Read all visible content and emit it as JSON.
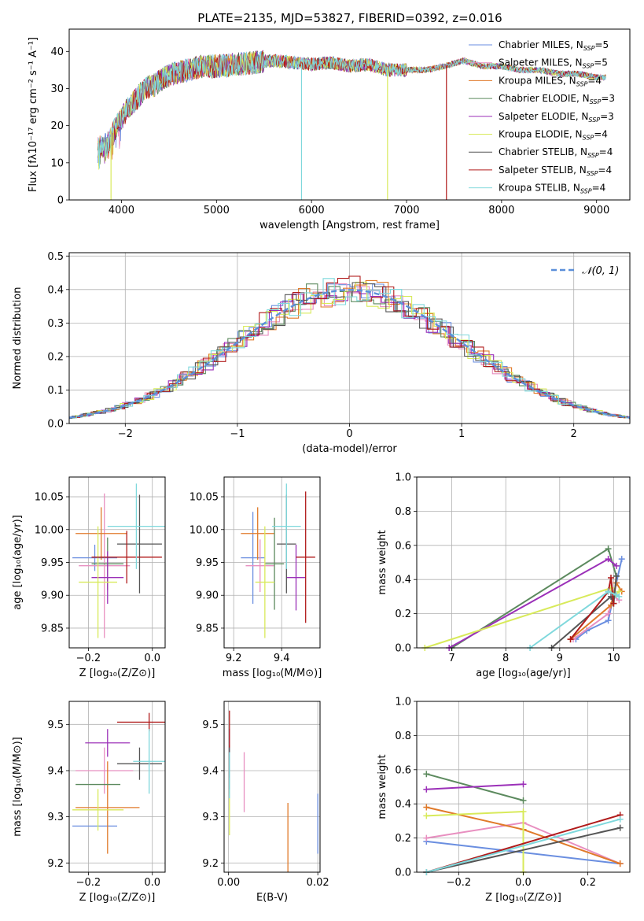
{
  "figure": {
    "title": "PLATE=2135, MJD=53827, FIBERID=0392, z=0.016",
    "panels": {
      "spectrum": {
        "xlabel": "wavelength [Angstrom, rest frame]",
        "ylabel": "Flux [fλ10⁻¹⁷ erg cm⁻² s⁻¹ A⁻¹]"
      },
      "residuals": {
        "xlabel": "(data-model)/error",
        "ylabel": "Normed distribution"
      },
      "age_vs_z": {
        "xlabel": "Z [log₁₀(Z/Z⊙)]",
        "ylabel": "age  [log₁₀(age/yr)]"
      },
      "age_vs_mass": {
        "xlabel": "mass [log₁₀(M/M⊙)]",
        "ylabel": ""
      },
      "weight_vs_age": {
        "xlabel": "age  [log₁₀(age/yr)]",
        "ylabel": "mass weight"
      },
      "mass_vs_z": {
        "xlabel": "Z [log₁₀(Z/Z⊙)]",
        "ylabel": "mass [log₁₀(M/M⊙)]"
      },
      "mass_vs_ebv": {
        "xlabel": "E(B-V)",
        "ylabel": ""
      },
      "weight_vs_z": {
        "xlabel": "Z [log₁₀(Z/Z⊙)]",
        "ylabel": "mass weight"
      }
    }
  },
  "colors": {
    "Chabrier MILES": "#6a8ee0",
    "Salpeter MILES": "#e88fc0",
    "Kroupa MILES": "#e07a2a",
    "Chabrier ELODIE": "#5c8a5e",
    "Salpeter ELODIE": "#9b30b8",
    "Kroupa ELODIE": "#d8ea5a",
    "Chabrier STELIB": "#555555",
    "Salpeter STELIB": "#b01a1a",
    "Kroupa STELIB": "#7fd8dc",
    "gauss": "#5b8fd9"
  },
  "chart_data": [
    {
      "id": "spectrum",
      "type": "line",
      "title": "PLATE=2135, MJD=53827, FIBERID=0392, z=0.016",
      "xlabel": "wavelength [Angstrom, rest frame]",
      "ylabel": "Flux [fλ10⁻¹⁷ erg cm⁻² s⁻¹ A⁻¹]",
      "xlim": [
        3450,
        9350
      ],
      "ylim": [
        0,
        46
      ],
      "xticks": [
        4000,
        5000,
        6000,
        7000,
        8000,
        9000
      ],
      "yticks": [
        0,
        10,
        20,
        30,
        40
      ],
      "grid": false,
      "legend_position": "top-right",
      "legend": [
        {
          "label": "Chabrier MILES, N",
          "sub": "SSP",
          "n": "=5",
          "color_key": "Chabrier MILES"
        },
        {
          "label": "Salpeter MILES, N",
          "sub": "SSP",
          "n": "=5",
          "color_key": "Salpeter MILES"
        },
        {
          "label": "Kroupa MILES, N",
          "sub": "SSP",
          "n": "=4",
          "color_key": "Kroupa MILES"
        },
        {
          "label": "Chabrier ELODIE, N",
          "sub": "SSP",
          "n": "=3",
          "color_key": "Chabrier ELODIE"
        },
        {
          "label": "Salpeter ELODIE, N",
          "sub": "SSP",
          "n": "=3",
          "color_key": "Salpeter ELODIE"
        },
        {
          "label": "Kroupa ELODIE, N",
          "sub": "SSP",
          "n": "=4",
          "color_key": "Kroupa ELODIE"
        },
        {
          "label": "Chabrier STELIB, N",
          "sub": "SSP",
          "n": "=4",
          "color_key": "Chabrier STELIB"
        },
        {
          "label": "Salpeter STELIB, N",
          "sub": "SSP",
          "n": "=4",
          "color_key": "Salpeter STELIB"
        },
        {
          "label": "Kroupa STELIB, N",
          "sub": "SSP",
          "n": "=4",
          "color_key": "Kroupa STELIB"
        }
      ],
      "continuum": [
        [
          3750,
          14
        ],
        [
          3850,
          15
        ],
        [
          3950,
          20
        ],
        [
          4050,
          24
        ],
        [
          4150,
          27
        ],
        [
          4250,
          30
        ],
        [
          4350,
          31
        ],
        [
          4450,
          33
        ],
        [
          4550,
          34
        ],
        [
          4700,
          35
        ],
        [
          4850,
          36
        ],
        [
          5000,
          36
        ],
        [
          5200,
          36.5
        ],
        [
          5400,
          37
        ],
        [
          5600,
          37.5
        ],
        [
          5800,
          37
        ],
        [
          6000,
          36.5
        ],
        [
          6200,
          37
        ],
        [
          6400,
          36
        ],
        [
          6600,
          36.5
        ],
        [
          6800,
          35
        ],
        [
          7000,
          35
        ],
        [
          7200,
          35
        ],
        [
          7400,
          36
        ],
        [
          7600,
          37.5
        ],
        [
          7800,
          36
        ],
        [
          8000,
          36
        ],
        [
          8200,
          35
        ],
        [
          8400,
          35
        ],
        [
          8600,
          34
        ],
        [
          8800,
          34
        ],
        [
          9000,
          33
        ],
        [
          9100,
          33
        ]
      ],
      "spikes_down": [
        {
          "x": 3890,
          "y": 0,
          "color_key": "Kroupa ELODIE"
        },
        {
          "x": 5895,
          "y": 0,
          "color_key": "Kroupa STELIB"
        },
        {
          "x": 6800,
          "y": 0,
          "color_key": "Kroupa ELODIE"
        },
        {
          "x": 7420,
          "y": 0,
          "color_key": "Salpeter STELIB"
        }
      ]
    },
    {
      "id": "residuals",
      "type": "histogram",
      "xlabel": "(data-model)/error",
      "ylabel": "Normed distribution",
      "xlim": [
        -2.5,
        2.5
      ],
      "ylim": [
        0,
        0.51
      ],
      "xticks": [
        -2,
        -1,
        0,
        1,
        2
      ],
      "yticks": [
        0.0,
        0.1,
        0.2,
        0.3,
        0.4,
        0.5
      ],
      "grid": true,
      "legend_position": "top-right",
      "gauss_label": "𝒩(0, 1)",
      "gauss_mean": 0,
      "gauss_sigma": 1,
      "bin_width": 0.1
    },
    {
      "id": "age_vs_z",
      "type": "scatter",
      "xlabel": "Z [log₁₀(Z/Z⊙)]",
      "ylabel": "age  [log₁₀(age/yr)]",
      "xlim": [
        -0.26,
        0.04
      ],
      "ylim": [
        9.82,
        10.08
      ],
      "xticks": [
        -0.2,
        0.0
      ],
      "yticks": [
        9.85,
        9.9,
        9.95,
        10.0,
        10.05
      ],
      "grid": true,
      "points": [
        {
          "model": "Chabrier MILES",
          "x": -0.18,
          "y": 9.957,
          "xerr": 0.07,
          "yerr": 0.02
        },
        {
          "model": "Salpeter MILES",
          "x": -0.15,
          "y": 9.945,
          "xerr": 0.08,
          "yerr": 0.11
        },
        {
          "model": "Kroupa MILES",
          "x": -0.16,
          "y": 9.994,
          "xerr": 0.08,
          "yerr": 0.04
        },
        {
          "model": "Chabrier ELODIE",
          "x": -0.14,
          "y": 9.948,
          "xerr": 0.05,
          "yerr": 0.04
        },
        {
          "model": "Salpeter ELODIE",
          "x": -0.14,
          "y": 9.927,
          "xerr": 0.05,
          "yerr": 0.04
        },
        {
          "model": "Kroupa ELODIE",
          "x": -0.17,
          "y": 9.92,
          "xerr": 0.06,
          "yerr": 0.085
        },
        {
          "model": "Chabrier STELIB",
          "x": -0.04,
          "y": 9.978,
          "xerr": 0.07,
          "yerr": 0.075
        },
        {
          "model": "Salpeter STELIB",
          "x": -0.08,
          "y": 9.958,
          "xerr": 0.11,
          "yerr": 0.04
        },
        {
          "model": "Kroupa STELIB",
          "x": -0.05,
          "y": 10.005,
          "xerr": 0.09,
          "yerr": 0.065
        }
      ]
    },
    {
      "id": "age_vs_mass",
      "type": "scatter",
      "xlabel": "mass [log₁₀(M/M⊙)]",
      "ylabel": "",
      "xlim": [
        9.16,
        9.56
      ],
      "ylim": [
        9.82,
        10.08
      ],
      "xticks": [
        9.2,
        9.4
      ],
      "yticks": [
        9.85,
        9.9,
        9.95,
        10.0,
        10.05
      ],
      "grid": true,
      "points": [
        {
          "model": "Chabrier MILES",
          "x": 9.28,
          "y": 9.957,
          "xerr": 0.05,
          "yerr": 0.07
        },
        {
          "model": "Salpeter MILES",
          "x": 9.31,
          "y": 9.945,
          "xerr": 0.06,
          "yerr": 0.04
        },
        {
          "model": "Kroupa MILES",
          "x": 9.3,
          "y": 9.994,
          "xerr": 0.07,
          "yerr": 0.04
        },
        {
          "model": "Chabrier ELODIE",
          "x": 9.37,
          "y": 9.948,
          "xerr": 0.04,
          "yerr": 0.07
        },
        {
          "model": "Salpeter ELODIE",
          "x": 9.46,
          "y": 9.927,
          "xerr": 0.04,
          "yerr": 0.05
        },
        {
          "model": "Kroupa ELODIE",
          "x": 9.33,
          "y": 9.92,
          "xerr": 0.04,
          "yerr": 0.085
        },
        {
          "model": "Chabrier STELIB",
          "x": 9.42,
          "y": 9.978,
          "xerr": 0.04,
          "yerr": 0.075
        },
        {
          "model": "Salpeter STELIB",
          "x": 9.5,
          "y": 9.958,
          "xerr": 0.04,
          "yerr": 0.1
        },
        {
          "model": "Kroupa STELIB",
          "x": 9.42,
          "y": 10.005,
          "xerr": 0.06,
          "yerr": 0.065
        }
      ]
    },
    {
      "id": "weight_vs_age",
      "type": "line",
      "xlabel": "age  [log₁₀(age/yr)]",
      "ylabel": "mass weight",
      "xlim": [
        6.35,
        10.3
      ],
      "ylim": [
        0,
        1.0
      ],
      "xticks": [
        7,
        8,
        9,
        10
      ],
      "yticks": [
        0.0,
        0.2,
        0.4,
        0.6,
        0.8,
        1.0
      ],
      "grid": true,
      "series": [
        {
          "model": "Chabrier MILES",
          "x": [
            9.3,
            9.5,
            9.9,
            10.05,
            10.15
          ],
          "y": [
            0.05,
            0.1,
            0.16,
            0.38,
            0.52
          ]
        },
        {
          "model": "Salpeter MILES",
          "x": [
            9.25,
            9.9,
            10.0,
            10.1
          ],
          "y": [
            0.05,
            0.2,
            0.3,
            0.28
          ]
        },
        {
          "model": "Kroupa MILES",
          "x": [
            9.2,
            9.95,
            10.05,
            10.15
          ],
          "y": [
            0.05,
            0.25,
            0.38,
            0.33
          ]
        },
        {
          "model": "Chabrier ELODIE",
          "x": [
            7.0,
            9.9,
            10.05
          ],
          "y": [
            0.0,
            0.58,
            0.42
          ]
        },
        {
          "model": "Salpeter ELODIE",
          "x": [
            6.95,
            9.9,
            10.05
          ],
          "y": [
            0.0,
            0.52,
            0.48
          ]
        },
        {
          "model": "Kroupa ELODIE",
          "x": [
            6.5,
            9.95,
            10.0,
            10.1
          ],
          "y": [
            0.0,
            0.35,
            0.3,
            0.33
          ]
        },
        {
          "model": "Chabrier STELIB",
          "x": [
            8.85,
            9.95,
            10.0,
            10.05
          ],
          "y": [
            0.0,
            0.3,
            0.26,
            0.42
          ]
        },
        {
          "model": "Salpeter STELIB",
          "x": [
            9.2,
            9.9,
            9.95,
            10.0
          ],
          "y": [
            0.05,
            0.33,
            0.41,
            0.26
          ]
        },
        {
          "model": "Kroupa STELIB",
          "x": [
            8.45,
            9.9,
            10.05,
            10.1
          ],
          "y": [
            0.0,
            0.33,
            0.31,
            0.3
          ]
        }
      ]
    },
    {
      "id": "mass_vs_z",
      "type": "scatter",
      "xlabel": "Z [log₁₀(Z/Z⊙)]",
      "ylabel": "mass [log₁₀(M/M⊙)]",
      "xlim": [
        -0.26,
        0.04
      ],
      "ylim": [
        9.18,
        9.55
      ],
      "xticks": [
        -0.2,
        0.0
      ],
      "yticks": [
        9.2,
        9.3,
        9.4,
        9.5
      ],
      "grid": true,
      "points": [
        {
          "model": "Chabrier MILES",
          "x": -0.18,
          "y": 9.28,
          "xerr": 0.07,
          "yerr": 0.0
        },
        {
          "model": "Salpeter MILES",
          "x": -0.15,
          "y": 9.4,
          "xerr": 0.09,
          "yerr": 0.05
        },
        {
          "model": "Kroupa MILES",
          "x": -0.14,
          "y": 9.32,
          "xerr": 0.1,
          "yerr": 0.1
        },
        {
          "model": "Chabrier ELODIE",
          "x": -0.17,
          "y": 9.37,
          "xerr": 0.07,
          "yerr": 0.0
        },
        {
          "model": "Salpeter ELODIE",
          "x": -0.14,
          "y": 9.46,
          "xerr": 0.07,
          "yerr": 0.03
        },
        {
          "model": "Kroupa ELODIE",
          "x": -0.17,
          "y": 9.315,
          "xerr": 0.08,
          "yerr": 0.045
        },
        {
          "model": "Chabrier STELIB",
          "x": -0.04,
          "y": 9.415,
          "xerr": 0.07,
          "yerr": 0.035
        },
        {
          "model": "Salpeter STELIB",
          "x": -0.01,
          "y": 9.505,
          "xerr": 0.1,
          "yerr": 0.02
        },
        {
          "model": "Kroupa STELIB",
          "x": -0.01,
          "y": 9.42,
          "xerr": 0.05,
          "yerr": 0.07
        }
      ]
    },
    {
      "id": "mass_vs_ebv",
      "type": "scatter",
      "xlabel": "E(B-V)",
      "ylabel": "",
      "xlim": [
        -0.001,
        0.0205
      ],
      "ylim": [
        9.18,
        9.55
      ],
      "xticks": [
        0.0,
        0.02
      ],
      "yticks": [
        9.2,
        9.3,
        9.4,
        9.5
      ],
      "grid": true,
      "points": [
        {
          "model": "Chabrier MILES",
          "x": 0.02,
          "y": 9.285,
          "xerr": 0,
          "yerr": 0.065
        },
        {
          "model": "Salpeter MILES",
          "x": 0.0035,
          "y": 9.375,
          "xerr": 0,
          "yerr": 0.065
        },
        {
          "model": "Kroupa MILES",
          "x": 0.0133,
          "y": 9.23,
          "xerr": 0,
          "yerr": 0.1
        },
        {
          "model": "Chabrier ELODIE",
          "x": 0.0002,
          "y": 9.39,
          "xerr": 0,
          "yerr": 0.04
        },
        {
          "model": "Salpeter ELODIE",
          "x": 0.0002,
          "y": 9.46,
          "xerr": 0,
          "yerr": 0.03
        },
        {
          "model": "Kroupa ELODIE",
          "x": 0.0002,
          "y": 9.31,
          "xerr": 0,
          "yerr": 0.05
        },
        {
          "model": "Chabrier STELIB",
          "x": 0.0002,
          "y": 9.42,
          "xerr": 0,
          "yerr": 0.035
        },
        {
          "model": "Salpeter STELIB",
          "x": 0.0002,
          "y": 9.49,
          "xerr": 0,
          "yerr": 0.04
        },
        {
          "model": "Kroupa STELIB",
          "x": 0.0002,
          "y": 9.39,
          "xerr": 0,
          "yerr": 0.05
        }
      ]
    },
    {
      "id": "weight_vs_z",
      "type": "line",
      "xlabel": "Z [log₁₀(Z/Z⊙)]",
      "ylabel": "mass weight",
      "xlim": [
        -0.33,
        0.33
      ],
      "ylim": [
        0,
        1.0
      ],
      "xticks": [
        -0.2,
        0.0,
        0.2
      ],
      "yticks": [
        0.0,
        0.2,
        0.4,
        0.6,
        0.8,
        1.0
      ],
      "grid": true,
      "series": [
        {
          "model": "Chabrier MILES",
          "x": [
            -0.3,
            0.3
          ],
          "y": [
            0.18,
            0.05
          ]
        },
        {
          "model": "Salpeter MILES",
          "x": [
            -0.3,
            0.0,
            0.3
          ],
          "y": [
            0.2,
            0.29,
            0.05
          ]
        },
        {
          "model": "Kroupa MILES",
          "x": [
            -0.3,
            0.0,
            0.3
          ],
          "y": [
            0.38,
            0.25,
            0.05
          ]
        },
        {
          "model": "Chabrier ELODIE",
          "x": [
            -0.3,
            0.0
          ],
          "y": [
            0.575,
            0.42
          ]
        },
        {
          "model": "Salpeter ELODIE",
          "x": [
            -0.3,
            0.0
          ],
          "y": [
            0.485,
            0.515
          ]
        },
        {
          "model": "Kroupa ELODIE",
          "x": [
            -0.3,
            0.0,
            0.0
          ],
          "y": [
            0.33,
            0.355,
            0.0
          ]
        },
        {
          "model": "Chabrier STELIB",
          "x": [
            -0.3,
            0.3
          ],
          "y": [
            0.0,
            0.26
          ]
        },
        {
          "model": "Salpeter STELIB",
          "x": [
            -0.3,
            0.3
          ],
          "y": [
            0.0,
            0.335
          ]
        },
        {
          "model": "Kroupa STELIB",
          "x": [
            -0.3,
            0.3
          ],
          "y": [
            0.0,
            0.31
          ]
        }
      ]
    }
  ]
}
